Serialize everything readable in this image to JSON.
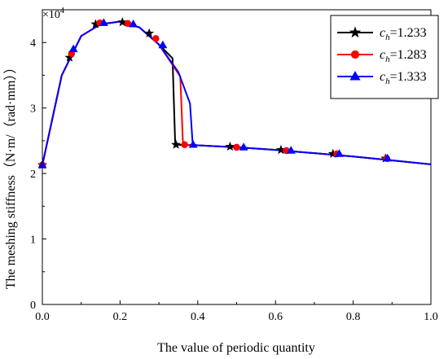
{
  "chart_data": {
    "type": "line",
    "title": "",
    "xlabel": "The value of periodic quantity",
    "ylabel": "The meshing stiffness（N·m/（rad·mm））",
    "y_multiplier_label": "×10",
    "y_multiplier_exp": "4",
    "xlim": [
      0,
      1.0
    ],
    "ylim": [
      0,
      45000
    ],
    "xticks": [
      0,
      0.2,
      0.4,
      0.6,
      0.8,
      1.0
    ],
    "xtick_labels": [
      "0.0",
      "0.2",
      "0.4",
      "0.6",
      "0.8",
      "1.0"
    ],
    "yticks": [
      0,
      10000,
      20000,
      30000,
      40000
    ],
    "ytick_labels": [
      "0",
      "1",
      "2",
      "3",
      "4"
    ],
    "grid": false,
    "legend_position": "top-right",
    "legend_prefix": "c",
    "legend_subscript": "h",
    "series": [
      {
        "name": "1.233",
        "color": "#000000",
        "marker": "star",
        "x": [
          0,
          0.05,
          0.1,
          0.15,
          0.2,
          0.25,
          0.3,
          0.335,
          0.342,
          0.4,
          0.5,
          0.6,
          0.7,
          0.8,
          0.9,
          1.0
        ],
        "y": [
          21300,
          35000,
          41000,
          42800,
          43200,
          42300,
          39700,
          37600,
          24400,
          24300,
          24000,
          23600,
          23100,
          22600,
          22000,
          21400
        ],
        "markers_x": [
          0,
          0.07,
          0.137,
          0.206,
          0.275,
          0.344,
          0.483,
          0.614,
          0.748,
          0.883
        ],
        "markers_y": [
          21300,
          37700,
          42800,
          43100,
          41400,
          24400,
          24100,
          23600,
          23000,
          22300
        ]
      },
      {
        "name": "1.283",
        "color": "#ff0000",
        "marker": "circle",
        "x": [
          0,
          0.05,
          0.1,
          0.15,
          0.2,
          0.25,
          0.3,
          0.355,
          0.362,
          0.4,
          0.5,
          0.6,
          0.7,
          0.8,
          0.9,
          1.0
        ],
        "y": [
          21300,
          35000,
          41000,
          42800,
          43200,
          42300,
          39700,
          34800,
          24400,
          24300,
          24000,
          23600,
          23100,
          22600,
          22000,
          21400
        ],
        "markers_x": [
          0,
          0.075,
          0.148,
          0.22,
          0.292,
          0.366,
          0.5,
          0.628,
          0.758,
          0.886
        ],
        "markers_y": [
          21300,
          38300,
          43000,
          42900,
          40600,
          24400,
          24000,
          23500,
          23000,
          22300
        ]
      },
      {
        "name": "1.333",
        "color": "#0000ff",
        "marker": "triangle",
        "x": [
          0,
          0.05,
          0.1,
          0.15,
          0.2,
          0.25,
          0.3,
          0.35,
          0.38,
          0.387,
          0.4,
          0.5,
          0.6,
          0.7,
          0.8,
          0.9,
          1.0
        ],
        "y": [
          21300,
          35000,
          41000,
          42800,
          43200,
          42300,
          39700,
          35500,
          30700,
          24400,
          24300,
          24000,
          23600,
          23100,
          22600,
          22000,
          21400
        ],
        "markers_x": [
          0,
          0.08,
          0.158,
          0.234,
          0.31,
          0.388,
          0.518,
          0.64,
          0.764,
          0.888
        ],
        "markers_y": [
          21300,
          39000,
          43000,
          42800,
          39600,
          24400,
          24000,
          23500,
          23000,
          22300
        ]
      }
    ]
  }
}
